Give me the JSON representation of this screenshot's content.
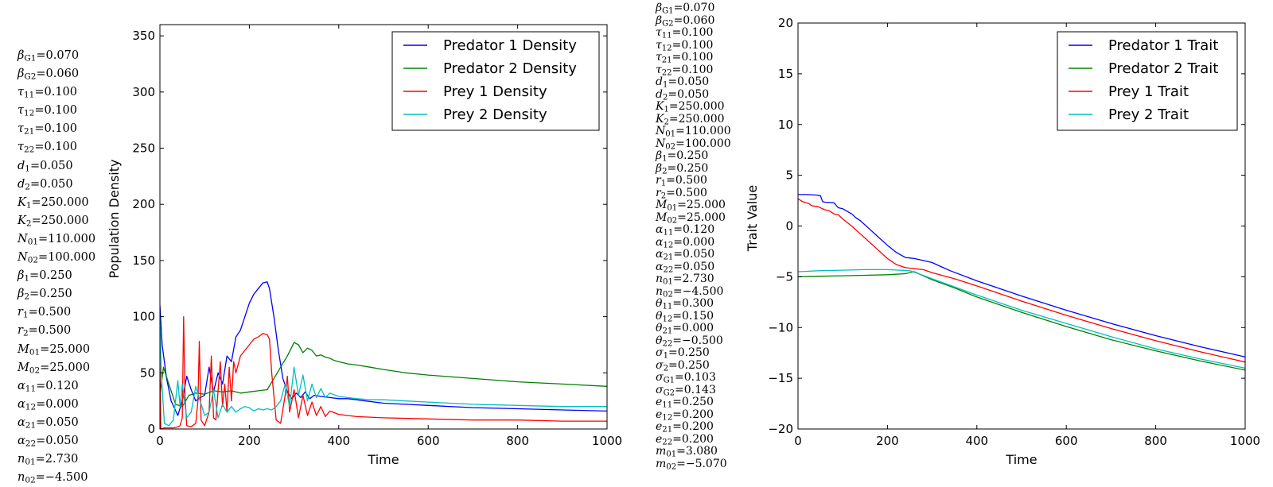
{
  "params_left": [
    {
      "sym": "β",
      "sub": "G1",
      "val": "0.070"
    },
    {
      "sym": "β",
      "sub": "G2",
      "val": "0.060"
    },
    {
      "sym": "τ",
      "sub": "11",
      "val": "0.100"
    },
    {
      "sym": "τ",
      "sub": "12",
      "val": "0.100"
    },
    {
      "sym": "τ",
      "sub": "21",
      "val": "0.100"
    },
    {
      "sym": "τ",
      "sub": "22",
      "val": "0.100"
    },
    {
      "sym": "d",
      "sub": "1",
      "val": "0.050"
    },
    {
      "sym": "d",
      "sub": "2",
      "val": "0.050"
    },
    {
      "sym": "K",
      "sub": "1",
      "val": "250.000"
    },
    {
      "sym": "K",
      "sub": "2",
      "val": "250.000"
    },
    {
      "sym": "N",
      "sub": "01",
      "val": "110.000"
    },
    {
      "sym": "N",
      "sub": "02",
      "val": "100.000"
    },
    {
      "sym": "β",
      "sub": "1",
      "val": "0.250"
    },
    {
      "sym": "β",
      "sub": "2",
      "val": "0.250"
    },
    {
      "sym": "r",
      "sub": "1",
      "val": "0.500"
    },
    {
      "sym": "r",
      "sub": "2",
      "val": "0.500"
    },
    {
      "sym": "M",
      "sub": "01",
      "val": "25.000"
    },
    {
      "sym": "M",
      "sub": "02",
      "val": "25.000"
    },
    {
      "sym": "α",
      "sub": "11",
      "val": "0.120"
    },
    {
      "sym": "α",
      "sub": "12",
      "val": "0.000"
    },
    {
      "sym": "α",
      "sub": "21",
      "val": "0.050"
    },
    {
      "sym": "α",
      "sub": "22",
      "val": "0.050"
    },
    {
      "sym": "n",
      "sub": "01",
      "val": "2.730"
    },
    {
      "sym": "n",
      "sub": "02",
      "val": "−4.500"
    }
  ],
  "params_mid": [
    {
      "sym": "β",
      "sub": "G1",
      "val": "0.070"
    },
    {
      "sym": "β",
      "sub": "G2",
      "val": "0.060"
    },
    {
      "sym": "τ",
      "sub": "11",
      "val": "0.100"
    },
    {
      "sym": "τ",
      "sub": "12",
      "val": "0.100"
    },
    {
      "sym": "τ",
      "sub": "21",
      "val": "0.100"
    },
    {
      "sym": "τ",
      "sub": "22",
      "val": "0.100"
    },
    {
      "sym": "d",
      "sub": "1",
      "val": "0.050"
    },
    {
      "sym": "d",
      "sub": "2",
      "val": "0.050"
    },
    {
      "sym": "K",
      "sub": "1",
      "val": "250.000"
    },
    {
      "sym": "K",
      "sub": "2",
      "val": "250.000"
    },
    {
      "sym": "N",
      "sub": "01",
      "val": "110.000"
    },
    {
      "sym": "N",
      "sub": "02",
      "val": "100.000"
    },
    {
      "sym": "β",
      "sub": "1",
      "val": "0.250"
    },
    {
      "sym": "β",
      "sub": "2",
      "val": "0.250"
    },
    {
      "sym": "r",
      "sub": "1",
      "val": "0.500"
    },
    {
      "sym": "r",
      "sub": "2",
      "val": "0.500"
    },
    {
      "sym": "M",
      "sub": "01",
      "val": "25.000"
    },
    {
      "sym": "M",
      "sub": "02",
      "val": "25.000"
    },
    {
      "sym": "α",
      "sub": "11",
      "val": "0.120"
    },
    {
      "sym": "α",
      "sub": "12",
      "val": "0.000"
    },
    {
      "sym": "α",
      "sub": "21",
      "val": "0.050"
    },
    {
      "sym": "α",
      "sub": "22",
      "val": "0.050"
    },
    {
      "sym": "n",
      "sub": "01",
      "val": "2.730"
    },
    {
      "sym": "n",
      "sub": "02",
      "val": "−4.500"
    },
    {
      "sym": "θ",
      "sub": "11",
      "val": "0.300"
    },
    {
      "sym": "θ",
      "sub": "12",
      "val": "0.150"
    },
    {
      "sym": "θ",
      "sub": "21",
      "val": "0.000"
    },
    {
      "sym": "θ",
      "sub": "22",
      "val": "−0.500"
    },
    {
      "sym": "σ",
      "sub": "1",
      "val": "0.250"
    },
    {
      "sym": "σ",
      "sub": "2",
      "val": "0.250"
    },
    {
      "sym": "σ",
      "sub": "G1",
      "val": "0.103"
    },
    {
      "sym": "σ",
      "sub": "G2",
      "val": "0.143"
    },
    {
      "sym": "e",
      "sub": "11",
      "val": "0.250"
    },
    {
      "sym": "e",
      "sub": "12",
      "val": "0.200"
    },
    {
      "sym": "e",
      "sub": "21",
      "val": "0.200"
    },
    {
      "sym": "e",
      "sub": "22",
      "val": "0.200"
    },
    {
      "sym": "m",
      "sub": "01",
      "val": "3.080"
    },
    {
      "sym": "m",
      "sub": "02",
      "val": "−5.070"
    }
  ],
  "chart_data": [
    {
      "type": "line",
      "xlabel": "Time",
      "ylabel": "Population Density",
      "xlim": [
        0,
        1000
      ],
      "ylim": [
        0,
        360
      ],
      "xticks": [
        "0",
        "200",
        "400",
        "600",
        "800",
        "1000"
      ],
      "yticks": [
        "0",
        "50",
        "100",
        "150",
        "200",
        "250",
        "300",
        "350"
      ],
      "grid": false,
      "legend_position": "top-right",
      "series": [
        {
          "name": "Predator 1 Density",
          "color": "#0000ff",
          "x": [
            0,
            5,
            15,
            25,
            40,
            50,
            60,
            70,
            80,
            90,
            100,
            110,
            120,
            130,
            140,
            150,
            160,
            170,
            180,
            190,
            200,
            210,
            220,
            230,
            240,
            245,
            255,
            265,
            275,
            285,
            295,
            305,
            315,
            325,
            335,
            345,
            360,
            380,
            400,
            420,
            440,
            460,
            500,
            550,
            600,
            700,
            800,
            900,
            1000
          ],
          "y": [
            110,
            75,
            45,
            25,
            12,
            25,
            47,
            35,
            25,
            28,
            30,
            55,
            33,
            50,
            40,
            65,
            60,
            82,
            88,
            100,
            112,
            120,
            125,
            130,
            131,
            125,
            100,
            70,
            45,
            33,
            27,
            32,
            28,
            33,
            27,
            30,
            29,
            28,
            27,
            27,
            26,
            25,
            23,
            22,
            21,
            19,
            18,
            17,
            16
          ]
        },
        {
          "name": "Predator 2 Density",
          "color": "#008000",
          "x": [
            0,
            8,
            20,
            35,
            50,
            65,
            80,
            100,
            120,
            140,
            160,
            180,
            200,
            220,
            240,
            255,
            270,
            285,
            300,
            310,
            320,
            330,
            340,
            350,
            360,
            370,
            380,
            390,
            400,
            420,
            440,
            470,
            500,
            550,
            600,
            700,
            800,
            900,
            1000
          ],
          "y": [
            30,
            55,
            40,
            22,
            20,
            30,
            32,
            31,
            34,
            33,
            34,
            32,
            33,
            34,
            35,
            45,
            55,
            65,
            77,
            75,
            68,
            72,
            70,
            65,
            66,
            64,
            63,
            61,
            60,
            58,
            57,
            55,
            53,
            50,
            48,
            45,
            42,
            40,
            38
          ]
        },
        {
          "name": "Prey 1 Density",
          "color": "#ff0000",
          "x": [
            0,
            2,
            10,
            20,
            30,
            40,
            45,
            50,
            53,
            56,
            60,
            70,
            80,
            85,
            88,
            92,
            100,
            110,
            115,
            120,
            125,
            135,
            140,
            145,
            150,
            155,
            160,
            165,
            170,
            180,
            190,
            200,
            210,
            220,
            230,
            240,
            245,
            250,
            260,
            270,
            280,
            285,
            290,
            300,
            310,
            320,
            330,
            340,
            350,
            360,
            370,
            380,
            400,
            420,
            440,
            500,
            600,
            700,
            800,
            900,
            1000
          ],
          "y": [
            60,
            0,
            1,
            1,
            1,
            2,
            3,
            10,
            100,
            30,
            3,
            2,
            5,
            25,
            78,
            8,
            3,
            15,
            65,
            10,
            8,
            60,
            20,
            40,
            15,
            55,
            25,
            60,
            50,
            65,
            70,
            75,
            80,
            82,
            85,
            84,
            80,
            50,
            8,
            5,
            30,
            47,
            15,
            35,
            10,
            30,
            12,
            24,
            12,
            20,
            11,
            16,
            13,
            12,
            11,
            10,
            9,
            8,
            8,
            7,
            7
          ]
        },
        {
          "name": "Prey 2 Density",
          "color": "#00bfbf",
          "x": [
            0,
            3,
            10,
            20,
            30,
            40,
            45,
            50,
            60,
            70,
            80,
            90,
            100,
            110,
            120,
            130,
            140,
            150,
            160,
            170,
            180,
            190,
            200,
            210,
            220,
            230,
            240,
            250,
            260,
            270,
            280,
            290,
            300,
            310,
            320,
            330,
            340,
            350,
            360,
            370,
            380,
            400,
            420,
            440,
            470,
            500,
            600,
            700,
            800,
            900,
            1000
          ],
          "y": [
            100,
            50,
            5,
            3,
            8,
            43,
            20,
            40,
            10,
            15,
            38,
            25,
            12,
            15,
            35,
            10,
            22,
            15,
            20,
            15,
            18,
            20,
            19,
            16,
            18,
            17,
            18,
            17,
            20,
            25,
            40,
            20,
            55,
            30,
            48,
            25,
            40,
            28,
            36,
            28,
            32,
            29,
            28,
            27,
            26,
            26,
            24,
            22,
            21,
            20,
            20
          ]
        }
      ]
    },
    {
      "type": "line",
      "xlabel": "Time",
      "ylabel": "Trait Value",
      "xlim": [
        0,
        1000
      ],
      "ylim": [
        -20,
        20
      ],
      "xticks": [
        "0",
        "200",
        "400",
        "600",
        "800",
        "1000"
      ],
      "yticks": [
        "−20",
        "−15",
        "−10",
        "−5",
        "0",
        "5",
        "10",
        "15",
        "20"
      ],
      "grid": false,
      "legend_position": "top-right",
      "series": [
        {
          "name": "Predator 1 Trait",
          "color": "#0000ff",
          "x": [
            0,
            20,
            40,
            50,
            55,
            60,
            80,
            90,
            95,
            100,
            120,
            130,
            140,
            160,
            180,
            200,
            220,
            240,
            260,
            280,
            300,
            320,
            340,
            400,
            500,
            600,
            700,
            800,
            900,
            1000
          ],
          "y": [
            3.1,
            3.1,
            3.05,
            3.0,
            2.4,
            2.35,
            2.3,
            1.8,
            1.75,
            1.7,
            1.2,
            0.8,
            0.5,
            -0.3,
            -1.1,
            -1.9,
            -2.6,
            -3.1,
            -3.2,
            -3.4,
            -3.6,
            -4.0,
            -4.4,
            -5.4,
            -6.9,
            -8.3,
            -9.6,
            -10.8,
            -11.9,
            -12.9
          ]
        },
        {
          "name": "Predator 2 Trait",
          "color": "#008000",
          "x": [
            0,
            50,
            100,
            150,
            200,
            240,
            260,
            280,
            300,
            350,
            400,
            500,
            600,
            700,
            800,
            900,
            1000
          ],
          "y": [
            -5.0,
            -4.95,
            -4.9,
            -4.85,
            -4.8,
            -4.7,
            -4.5,
            -4.9,
            -5.3,
            -6.1,
            -7.0,
            -8.5,
            -9.9,
            -11.2,
            -12.3,
            -13.3,
            -14.2
          ]
        },
        {
          "name": "Prey 1 Trait",
          "color": "#ff0000",
          "x": [
            0,
            10,
            25,
            30,
            45,
            60,
            70,
            80,
            90,
            100,
            120,
            140,
            160,
            180,
            200,
            220,
            240,
            260,
            280,
            300,
            350,
            400,
            500,
            600,
            700,
            800,
            900,
            1000
          ],
          "y": [
            2.7,
            2.4,
            2.2,
            2.0,
            1.9,
            1.6,
            1.5,
            1.2,
            1.1,
            0.7,
            0.0,
            -0.8,
            -1.6,
            -2.4,
            -3.2,
            -3.8,
            -4.1,
            -4.2,
            -4.3,
            -4.6,
            -5.2,
            -5.9,
            -7.4,
            -8.8,
            -10.1,
            -11.3,
            -12.4,
            -13.4
          ]
        },
        {
          "name": "Prey 2 Trait",
          "color": "#00bfbf",
          "x": [
            0,
            50,
            100,
            150,
            200,
            250,
            270,
            300,
            350,
            400,
            500,
            600,
            700,
            800,
            900,
            1000
          ],
          "y": [
            -4.5,
            -4.4,
            -4.35,
            -4.3,
            -4.3,
            -4.4,
            -4.7,
            -5.2,
            -6.0,
            -6.8,
            -8.3,
            -9.6,
            -10.9,
            -12.1,
            -13.1,
            -14.0
          ]
        }
      ]
    }
  ]
}
